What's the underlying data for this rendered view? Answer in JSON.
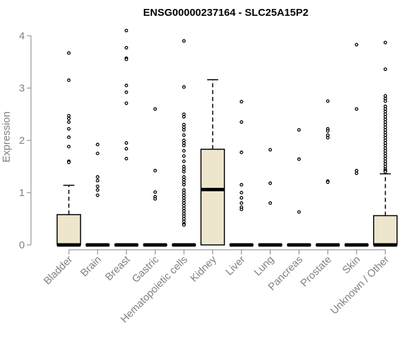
{
  "chart_data": {
    "type": "boxplot",
    "title": "ENSG00000237164 - SLC25A15P2",
    "xlabel": "",
    "ylabel": "Expression",
    "ylim": [
      0,
      4.1
    ],
    "yticks": [
      0,
      1,
      2,
      3,
      4
    ],
    "colors": {
      "box_fill": "#ede6cd",
      "stroke": "#000000",
      "axis": "#808080"
    },
    "categories": [
      "Bladder",
      "Brain",
      "Breast",
      "Gastric",
      "Hematopoietic cells",
      "Kidney",
      "Liver",
      "Lung",
      "Pancreas",
      "Prostate",
      "Skin",
      "Unknown / Other"
    ],
    "boxes": [
      {
        "q1": 0,
        "median": 0,
        "q3": 0.58,
        "whisker_low": 0,
        "whisker_high": 1.14,
        "outliers": [
          3.67,
          3.15,
          2.47,
          2.42,
          2.35,
          2.22,
          2.06,
          1.88,
          1.6,
          1.58
        ]
      },
      {
        "q1": 0,
        "median": 0,
        "q3": 0,
        "whisker_low": 0,
        "whisker_high": 0,
        "outliers": [
          1.92,
          1.75,
          1.3,
          1.23,
          1.12,
          1.05,
          0.95
        ]
      },
      {
        "q1": 0,
        "median": 0,
        "q3": 0,
        "whisker_low": 0,
        "whisker_high": 0,
        "outliers": [
          4.1,
          3.77,
          3.57,
          3.55,
          3.05,
          2.92,
          2.71,
          1.95,
          1.84,
          1.65
        ]
      },
      {
        "q1": 0,
        "median": 0,
        "q3": 0,
        "whisker_low": 0,
        "whisker_high": 0,
        "outliers": [
          2.6,
          1.42,
          1.01,
          0.92,
          0.88
        ]
      },
      {
        "q1": 0,
        "median": 0,
        "q3": 0,
        "whisker_low": 0,
        "whisker_high": 0,
        "outliers": [
          3.9,
          3.02,
          2.5,
          2.45,
          2.3,
          2.25,
          2.2,
          2.1,
          2.0,
          1.95,
          1.9,
          1.8,
          1.7,
          1.6,
          1.5,
          1.45,
          1.4,
          1.3,
          1.25,
          1.2,
          1.15,
          1.05,
          1.0,
          0.95,
          0.9,
          0.85,
          0.8,
          0.75,
          0.7,
          0.65,
          0.6,
          0.55,
          0.5,
          0.45,
          0.4,
          0.38
        ]
      },
      {
        "q1": 0,
        "median": 1.06,
        "q3": 1.83,
        "whisker_low": 0,
        "whisker_high": 3.16,
        "outliers": []
      },
      {
        "q1": 0,
        "median": 0,
        "q3": 0,
        "whisker_low": 0,
        "whisker_high": 0,
        "outliers": [
          2.74,
          2.35,
          1.77,
          1.15,
          1.0,
          0.9,
          0.8,
          0.72,
          0.68
        ]
      },
      {
        "q1": 0,
        "median": 0,
        "q3": 0,
        "whisker_low": 0,
        "whisker_high": 0,
        "outliers": [
          1.82,
          1.18,
          0.8
        ]
      },
      {
        "q1": 0,
        "median": 0,
        "q3": 0,
        "whisker_low": 0,
        "whisker_high": 0,
        "outliers": [
          2.2,
          1.64,
          0.63
        ]
      },
      {
        "q1": 0,
        "median": 0,
        "q3": 0,
        "whisker_low": 0,
        "whisker_high": 0,
        "outliers": [
          2.75,
          2.22,
          2.18,
          2.1,
          2.05,
          1.22,
          1.2
        ]
      },
      {
        "q1": 0,
        "median": 0,
        "q3": 0,
        "whisker_low": 0,
        "whisker_high": 0,
        "outliers": [
          3.83,
          2.6,
          1.42,
          1.37
        ]
      },
      {
        "q1": 0,
        "median": 0,
        "q3": 0.56,
        "whisker_low": 0,
        "whisker_high": 1.36,
        "outliers": [
          3.87,
          3.36,
          2.85,
          2.8,
          2.75,
          2.65,
          2.6,
          2.55,
          2.5,
          2.45,
          2.4,
          2.35,
          2.3,
          2.25,
          2.2,
          2.15,
          2.1,
          2.05,
          2.0,
          1.95,
          1.9,
          1.85,
          1.8,
          1.75,
          1.7,
          1.65,
          1.6,
          1.55,
          1.5,
          1.45,
          1.42,
          1.4
        ]
      }
    ]
  }
}
